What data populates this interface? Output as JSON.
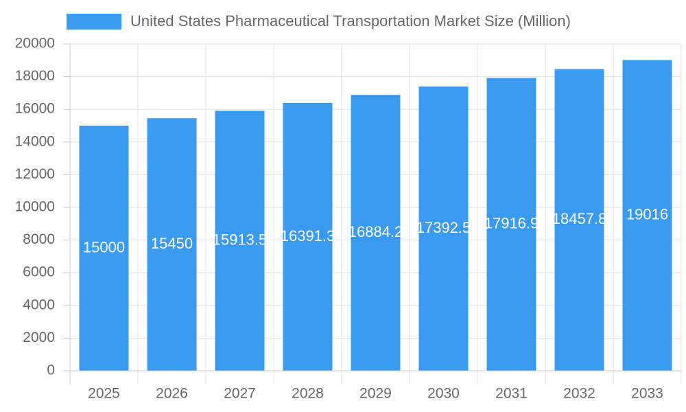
{
  "chart_data": {
    "type": "bar",
    "legend_label": "United States Pharmaceutical Transportation Market Size (Million)",
    "categories": [
      "2025",
      "2026",
      "2027",
      "2028",
      "2029",
      "2030",
      "2031",
      "2032",
      "2033"
    ],
    "values": [
      15000,
      15450,
      15913.5,
      16391.3,
      16884.2,
      17392.5,
      17916.9,
      18457.8,
      19016
    ],
    "color": "#3a9aef",
    "ylim": [
      0,
      20000
    ],
    "yticks": [
      0,
      2000,
      4000,
      6000,
      8000,
      10000,
      12000,
      14000,
      16000,
      18000,
      20000
    ],
    "grid": true
  }
}
